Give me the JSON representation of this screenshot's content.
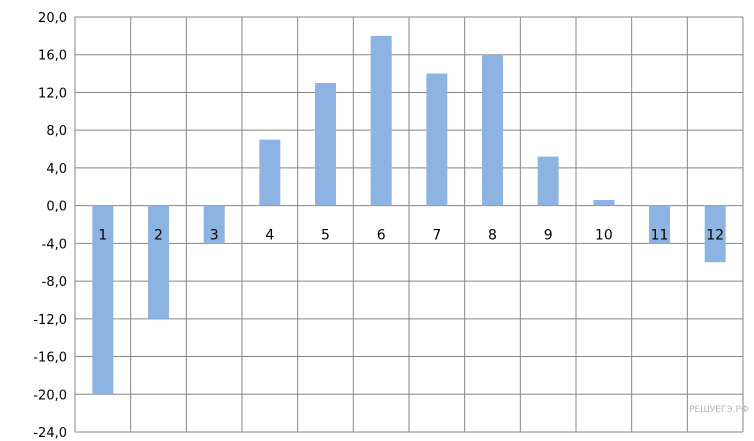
{
  "chart_data": {
    "type": "bar",
    "title": "",
    "xlabel": "",
    "ylabel": "",
    "categories": [
      "1",
      "2",
      "3",
      "4",
      "5",
      "6",
      "7",
      "8",
      "9",
      "10",
      "11",
      "12"
    ],
    "values": [
      -20,
      -12,
      -4,
      7,
      13,
      18,
      14,
      16,
      5.2,
      0.6,
      -4,
      -6
    ],
    "ylim": [
      -24,
      20
    ],
    "ytick_step": 4,
    "ytick_labels": [
      "20,0",
      "16,0",
      "12,0",
      "8,0",
      "4,0",
      "0,0",
      "-4,0",
      "-8,0",
      "-12,0",
      "-16,0",
      "-20,0",
      "-24,0"
    ],
    "grid": true,
    "legend": "none",
    "bar_color": "#8db3e2",
    "grid_color": "#868686",
    "category_labels_position": "just below zero line"
  },
  "watermark": "РЕШУЕГЭ.РФ"
}
